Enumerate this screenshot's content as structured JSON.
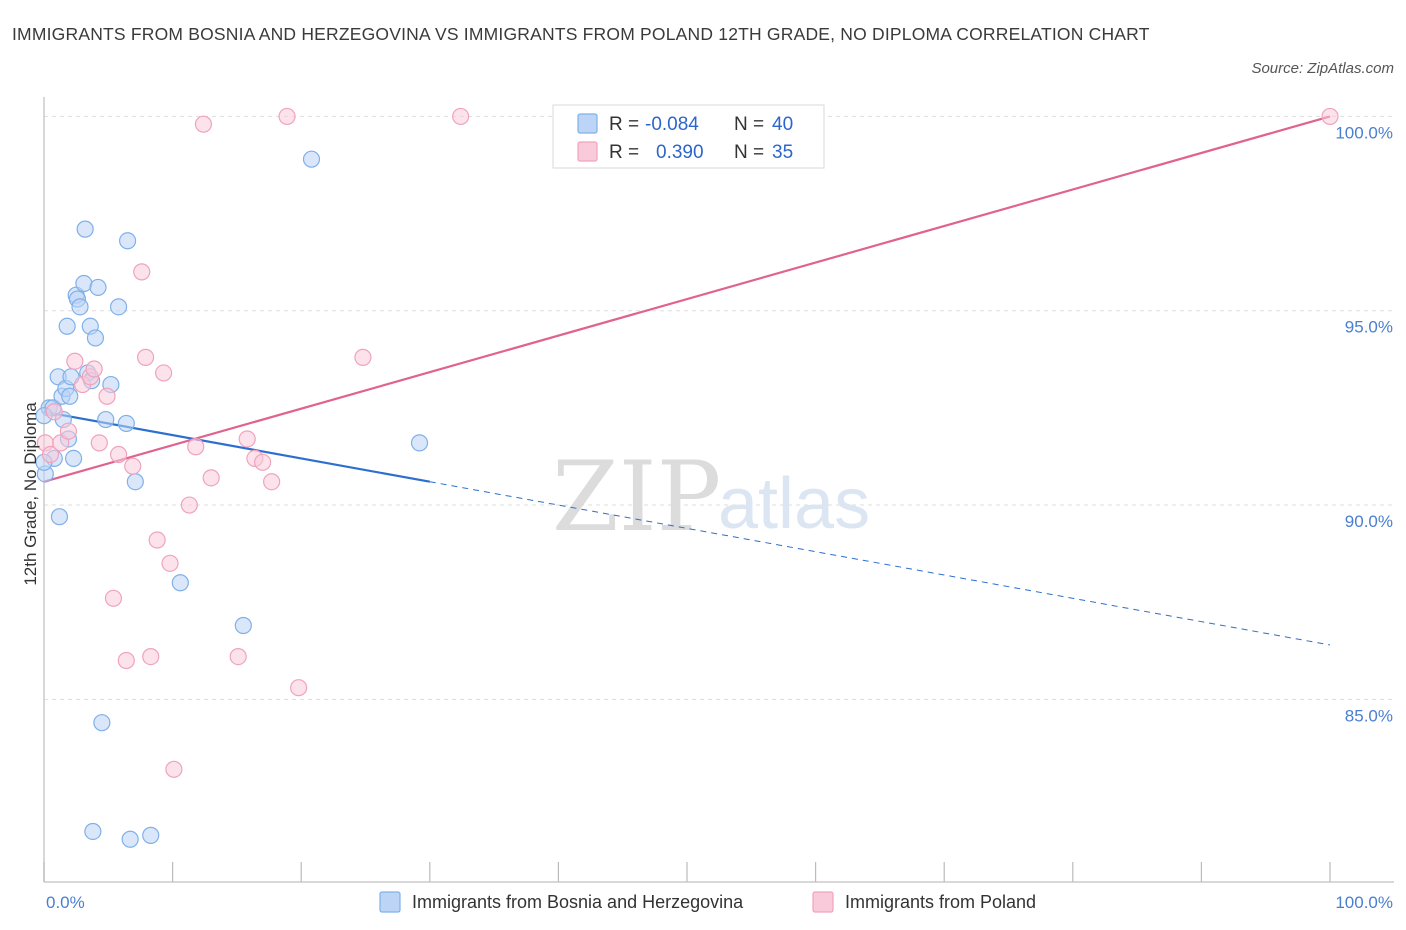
{
  "title": "IMMIGRANTS FROM BOSNIA AND HERZEGOVINA VS IMMIGRANTS FROM POLAND 12TH GRADE, NO DIPLOMA CORRELATION CHART",
  "source": "Source: ZipAtlas.com",
  "watermark": {
    "zip": "ZIP",
    "atlas": "atlas"
  },
  "stats_box": {
    "rows": [
      {
        "r_label": "R =",
        "r_value": "-0.084",
        "n_label": "N =",
        "n_value": "40",
        "color": "#7fb0ea",
        "fill": "#bcd4f6"
      },
      {
        "r_label": "R =",
        "r_value": "0.390",
        "n_label": "N =",
        "n_value": "35",
        "color": "#f0a3bd",
        "fill": "#f9cad9"
      }
    ]
  },
  "chart_data": {
    "type": "scatter",
    "title": "IMMIGRANTS FROM BOSNIA AND HERZEGOVINA VS IMMIGRANTS FROM POLAND 12TH GRADE, NO DIPLOMA CORRELATION CHART",
    "xlabel": "",
    "ylabel": "12th Grade, No Diploma",
    "xlim": [
      0,
      100
    ],
    "ylim": [
      80.3,
      100.5
    ],
    "x_tick_labels": [
      {
        "value": 0,
        "label": "0.0%"
      },
      {
        "value": 100,
        "label": "100.0%"
      }
    ],
    "y_ticks": [
      {
        "value": 100,
        "label": "100.0%"
      },
      {
        "value": 95,
        "label": "95.0%"
      },
      {
        "value": 90,
        "label": "90.0%"
      },
      {
        "value": 85,
        "label": "85.0%"
      }
    ],
    "x_minor_ticks": [
      0,
      10,
      20,
      30,
      40,
      50,
      60,
      70,
      80,
      90,
      100
    ],
    "grid": true,
    "legend_position": "bottom",
    "series": [
      {
        "name": "Immigrants from Bosnia and Herzegovina",
        "color": "#7fb0ea",
        "fill": "#bcd4f6",
        "line_color": "#2c6fce",
        "trend": {
          "x0": 0,
          "y0": 92.4,
          "x1": 30,
          "y1": 90.6,
          "x_end": 100,
          "y_end": 86.4
        },
        "points": [
          [
            0.1,
            90.8
          ],
          [
            0.4,
            92.5
          ],
          [
            0.7,
            92.5
          ],
          [
            0.8,
            91.2
          ],
          [
            1.1,
            93.3
          ],
          [
            1.2,
            89.7
          ],
          [
            1.4,
            92.8
          ],
          [
            1.5,
            92.2
          ],
          [
            1.7,
            93.0
          ],
          [
            1.8,
            94.6
          ],
          [
            1.9,
            91.7
          ],
          [
            2.0,
            92.8
          ],
          [
            2.1,
            93.3
          ],
          [
            2.3,
            91.2
          ],
          [
            2.5,
            95.4
          ],
          [
            2.6,
            95.3
          ],
          [
            2.8,
            95.1
          ],
          [
            3.1,
            95.7
          ],
          [
            3.2,
            97.1
          ],
          [
            3.4,
            93.4
          ],
          [
            3.6,
            94.6
          ],
          [
            3.7,
            93.2
          ],
          [
            3.8,
            81.6
          ],
          [
            4.0,
            94.3
          ],
          [
            4.2,
            95.6
          ],
          [
            4.5,
            84.4
          ],
          [
            4.8,
            92.2
          ],
          [
            5.2,
            93.1
          ],
          [
            5.8,
            95.1
          ],
          [
            6.4,
            92.1
          ],
          [
            6.5,
            96.8
          ],
          [
            6.7,
            81.4
          ],
          [
            7.1,
            90.6
          ],
          [
            8.3,
            81.5
          ],
          [
            10.6,
            88.0
          ],
          [
            15.5,
            86.9
          ],
          [
            20.8,
            98.9
          ],
          [
            29.2,
            91.6
          ],
          [
            0.0,
            91.1
          ],
          [
            0.0,
            92.3
          ]
        ]
      },
      {
        "name": "Immigrants from Poland",
        "color": "#f0a3bd",
        "fill": "#f9cad9",
        "line_color": "#e0638f",
        "trend": {
          "x0": 0,
          "y0": 90.6,
          "x1": 100,
          "y1": 100.0
        },
        "points": [
          [
            0.1,
            91.6
          ],
          [
            0.5,
            91.3
          ],
          [
            0.8,
            92.4
          ],
          [
            1.3,
            91.6
          ],
          [
            1.9,
            91.9
          ],
          [
            2.4,
            93.7
          ],
          [
            3.0,
            93.1
          ],
          [
            3.6,
            93.3
          ],
          [
            3.9,
            93.5
          ],
          [
            4.3,
            91.6
          ],
          [
            4.9,
            92.8
          ],
          [
            5.4,
            87.6
          ],
          [
            5.8,
            91.3
          ],
          [
            6.4,
            86.0
          ],
          [
            6.9,
            91.0
          ],
          [
            7.6,
            96.0
          ],
          [
            7.9,
            93.8
          ],
          [
            8.3,
            86.1
          ],
          [
            8.8,
            89.1
          ],
          [
            9.3,
            93.4
          ],
          [
            9.8,
            88.5
          ],
          [
            10.1,
            83.2
          ],
          [
            11.3,
            90.0
          ],
          [
            11.8,
            91.5
          ],
          [
            12.4,
            99.8
          ],
          [
            13.0,
            90.7
          ],
          [
            15.1,
            86.1
          ],
          [
            15.8,
            91.7
          ],
          [
            16.4,
            91.2
          ],
          [
            17.0,
            91.1
          ],
          [
            17.7,
            90.6
          ],
          [
            18.9,
            100.0
          ],
          [
            19.8,
            85.3
          ],
          [
            24.8,
            93.8
          ],
          [
            32.4,
            100.0
          ]
        ]
      }
    ],
    "extra_points": [
      {
        "series": 1,
        "x": 100,
        "y": 100.0
      }
    ]
  }
}
